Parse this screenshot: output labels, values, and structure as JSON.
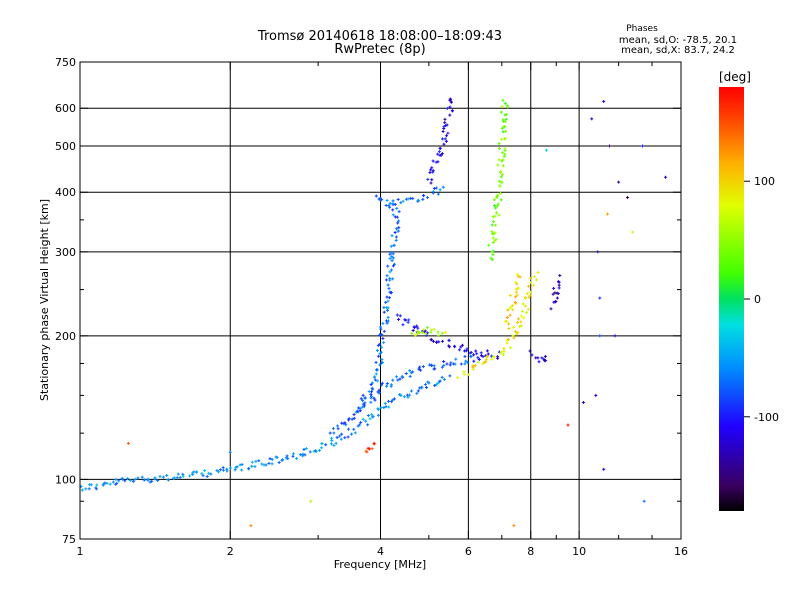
{
  "chart_data": {
    "type": "scatter",
    "title": "Tromsø 20140618 18:08:00–18:09:43",
    "subtitle": "RwPretec (8p)",
    "xlabel": "Frequency [MHz]",
    "ylabel": "Stationary phase Virtual Height [km]",
    "x_scale": "log",
    "y_scale": "log",
    "xlim": [
      1,
      16
    ],
    "ylim": [
      75,
      750
    ],
    "x_ticks": [
      1,
      2,
      4,
      6,
      8,
      10,
      16
    ],
    "x_minor_ticks": [
      3,
      5,
      7,
      9,
      12,
      14
    ],
    "y_ticks": [
      75,
      100,
      200,
      300,
      400,
      500,
      600,
      750
    ],
    "y_minor_ticks": [
      90,
      125,
      150,
      175,
      250,
      350
    ],
    "x_gridlines": [
      2,
      4,
      6,
      8,
      10
    ],
    "y_gridlines": [
      100,
      200,
      300,
      400,
      500,
      600
    ],
    "grid": true,
    "legend": {
      "title": "Phases",
      "line1": "mean, sd,O: -78.5, 20.1",
      "line2": "mean, sd,X:  83.7, 24.2",
      "placement": "top-right"
    },
    "colorbar": {
      "label": "[deg]",
      "range": [
        -180,
        180
      ],
      "ticks": [
        {
          "value": 100,
          "label": "100"
        },
        {
          "value": 0,
          "label": "0"
        },
        {
          "value": -100,
          "label": "-100"
        }
      ],
      "colors": [
        "#000000",
        "#3a0060",
        "#2000ff",
        "#0090ff",
        "#00e0e0",
        "#00e060",
        "#40ff00",
        "#e0ff00",
        "#ffb000",
        "#ff4000",
        "#ff0000"
      ],
      "stops": [
        0.0,
        0.06,
        0.2,
        0.34,
        0.44,
        0.5,
        0.56,
        0.72,
        0.82,
        0.93,
        1.0
      ]
    },
    "traces": [
      {
        "name": "",
        "phase": -60,
        "points": [
          [
            1.0,
            96
          ],
          [
            1.1,
            97
          ],
          [
            1.2,
            99
          ],
          [
            1.3,
            100
          ],
          [
            1.5,
            101
          ],
          [
            1.7,
            102
          ],
          [
            1.9,
            104
          ],
          [
            2.1,
            106
          ],
          [
            2.4,
            109
          ],
          [
            2.7,
            112
          ],
          [
            3.0,
            116
          ],
          [
            3.3,
            121
          ],
          [
            3.6,
            128
          ],
          [
            3.9,
            137
          ],
          [
            4.1,
            144
          ],
          [
            4.3,
            148
          ],
          [
            4.6,
            152
          ],
          [
            4.9,
            156
          ],
          [
            5.2,
            160
          ],
          [
            5.5,
            164
          ]
        ]
      },
      {
        "name": "",
        "phase": -80,
        "points": [
          [
            3.6,
            140
          ],
          [
            3.9,
            150
          ],
          [
            4.1,
            158
          ],
          [
            4.4,
            165
          ],
          [
            4.8,
            170
          ],
          [
            5.2,
            173
          ],
          [
            5.6,
            175
          ],
          [
            6.0,
            178
          ],
          [
            6.4,
            180
          ]
        ]
      },
      {
        "name": "",
        "phase": -70,
        "points": [
          [
            3.2,
            125
          ],
          [
            3.5,
            135
          ],
          [
            3.8,
            150
          ],
          [
            3.95,
            165
          ],
          [
            4.0,
            185
          ],
          [
            4.05,
            205
          ],
          [
            4.1,
            225
          ],
          [
            4.15,
            250
          ],
          [
            4.2,
            280
          ],
          [
            4.25,
            310
          ],
          [
            4.3,
            340
          ],
          [
            4.3,
            380
          ]
        ]
      },
      {
        "name": "",
        "phase": -70,
        "points": [
          [
            3.95,
            395
          ],
          [
            4.0,
            385
          ],
          [
            4.1,
            380
          ],
          [
            4.2,
            375
          ],
          [
            4.3,
            385
          ],
          [
            4.5,
            385
          ],
          [
            4.8,
            390
          ],
          [
            5.1,
            398
          ],
          [
            5.4,
            408
          ]
        ]
      },
      {
        "name": "",
        "phase": -110,
        "points": [
          [
            5.0,
            420
          ],
          [
            5.2,
            470
          ],
          [
            5.4,
            530
          ],
          [
            5.5,
            590
          ],
          [
            5.6,
            640
          ]
        ]
      },
      {
        "name": "",
        "phase": -110,
        "points": [
          [
            4.3,
            220
          ],
          [
            4.8,
            205
          ],
          [
            5.3,
            195
          ],
          [
            5.8,
            188
          ],
          [
            6.2,
            185
          ],
          [
            6.6,
            183
          ],
          [
            7.0,
            182
          ]
        ]
      },
      {
        "name": "",
        "phase": 55,
        "points": [
          [
            4.6,
            203
          ],
          [
            5.0,
            205
          ],
          [
            5.4,
            202
          ]
        ]
      },
      {
        "name": "",
        "phase": 90,
        "points": [
          [
            5.8,
            165
          ],
          [
            6.2,
            172
          ],
          [
            6.6,
            178
          ],
          [
            7.0,
            185
          ],
          [
            7.3,
            195
          ],
          [
            7.6,
            215
          ],
          [
            7.9,
            240
          ],
          [
            8.2,
            270
          ]
        ]
      },
      {
        "name": "",
        "phase": -120,
        "points": [
          [
            8.0,
            185
          ],
          [
            8.3,
            180
          ],
          [
            8.5,
            178
          ],
          [
            8.7,
            180
          ]
        ]
      },
      {
        "name": "",
        "phase": 40,
        "points": [
          [
            6.6,
            290
          ],
          [
            6.8,
            340
          ],
          [
            6.9,
            400
          ],
          [
            7.0,
            470
          ],
          [
            7.05,
            550
          ],
          [
            7.1,
            630
          ]
        ]
      },
      {
        "name": "",
        "phase": 100,
        "points": [
          [
            7.2,
            210
          ],
          [
            7.4,
            240
          ],
          [
            7.5,
            260
          ],
          [
            7.6,
            270
          ]
        ]
      },
      {
        "name": "",
        "phase": 160,
        "points": [
          [
            3.75,
            113
          ],
          [
            3.85,
            116
          ],
          [
            3.95,
            119
          ]
        ]
      },
      {
        "name": "",
        "phase": -130,
        "points": [
          [
            8.9,
            230
          ],
          [
            9.0,
            250
          ],
          [
            9.1,
            270
          ]
        ]
      }
    ],
    "scatter_points": [
      [
        1.25,
        119,
        150
      ],
      [
        2.0,
        114,
        -60
      ],
      [
        2.6,
        112,
        -70
      ],
      [
        2.9,
        90,
        60
      ],
      [
        10.6,
        570,
        -120
      ],
      [
        11.2,
        620,
        -130
      ],
      [
        11.5,
        500,
        -150
      ],
      [
        12.0,
        420,
        -140
      ],
      [
        12.5,
        390,
        -160
      ],
      [
        13.4,
        500,
        -100
      ],
      [
        14.9,
        430,
        -120
      ],
      [
        11.4,
        360,
        120
      ],
      [
        10.8,
        150,
        -120
      ],
      [
        11.2,
        105,
        -130
      ],
      [
        13.5,
        90,
        -70
      ],
      [
        9.5,
        130,
        170
      ],
      [
        11.0,
        200,
        -80
      ],
      [
        12.8,
        330,
        90
      ],
      [
        8.6,
        490,
        -30
      ],
      [
        7.4,
        80,
        130
      ],
      [
        2.2,
        80,
        130
      ],
      [
        11.8,
        200,
        -110
      ],
      [
        10.2,
        145,
        -130
      ],
      [
        11.0,
        240,
        -90
      ],
      [
        10.9,
        300,
        -140
      ]
    ]
  }
}
